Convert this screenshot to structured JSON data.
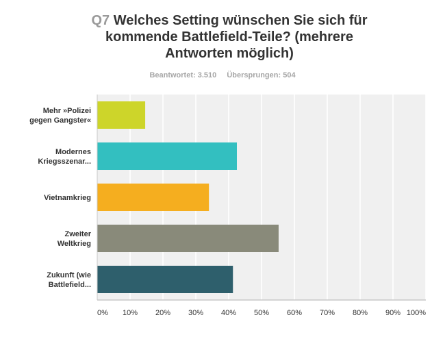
{
  "chart_data": {
    "type": "bar",
    "orientation": "horizontal",
    "title_prefix": "Q7",
    "title": "Welches Setting wünschen Sie sich für kommende Battlefield-Teile? (mehrere Antworten möglich)",
    "title_lines": [
      "Welches Setting wünschen Sie sich für",
      "kommende Battlefield-Teile? (mehrere",
      "Antworten möglich)"
    ],
    "subtitle": {
      "answered": "Beantwortet: 3.510",
      "skipped": "Übersprungen: 504"
    },
    "categories": [
      [
        "Mehr »Polizei",
        "gegen Gangster«"
      ],
      [
        "Modernes",
        "Kriegsszenar..."
      ],
      [
        "Vietnamkrieg"
      ],
      [
        "Zweiter",
        "Weltkrieg"
      ],
      [
        "Zukunft (wie",
        "Battlefield..."
      ]
    ],
    "values": [
      14.6,
      42.5,
      34.0,
      55.2,
      41.3
    ],
    "colors": [
      "#cdd52a",
      "#33bfc0",
      "#f5ae1f",
      "#898a7a",
      "#2e5f6c"
    ],
    "xlabel": "",
    "ylabel": "",
    "xlim": [
      0,
      100
    ],
    "ticks": [
      "0%",
      "10%",
      "20%",
      "30%",
      "40%",
      "50%",
      "60%",
      "70%",
      "80%",
      "90%",
      "100%"
    ],
    "grid": true,
    "legend": "none",
    "plot_background": "#f0f0f0",
    "grid_color": "#ffffff"
  }
}
